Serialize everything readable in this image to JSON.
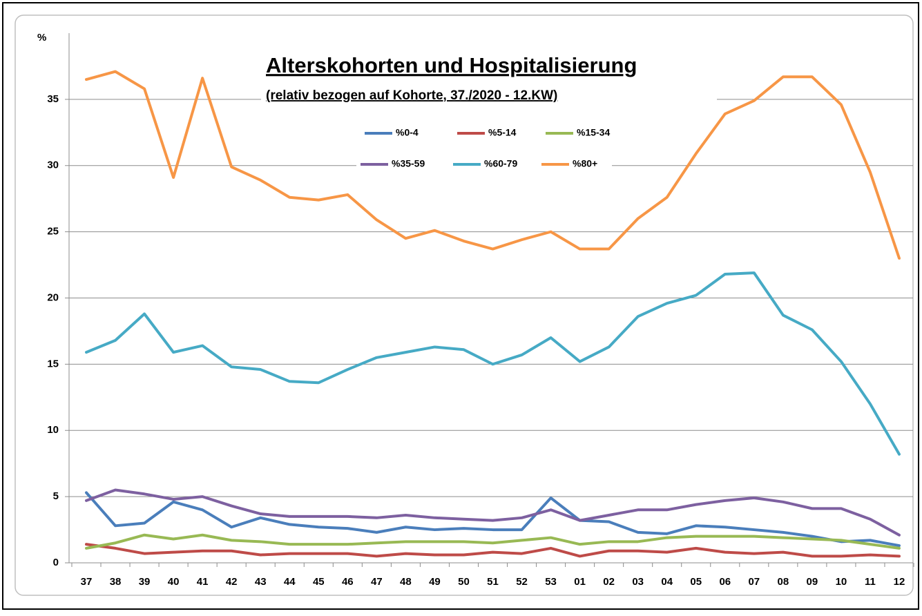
{
  "chart_data": {
    "type": "line",
    "title": "Alterskohorten und Hospitalisierung",
    "subtitle": "(relativ bezogen auf Kohorte, 37./2020  - 12.KW)",
    "y_label": "%",
    "categories": [
      "37",
      "38",
      "39",
      "40",
      "41",
      "42",
      "43",
      "44",
      "45",
      "46",
      "47",
      "48",
      "49",
      "50",
      "51",
      "52",
      "53",
      "01",
      "02",
      "03",
      "04",
      "05",
      "06",
      "07",
      "08",
      "09",
      "10",
      "11",
      "12"
    ],
    "ylim": [
      0,
      40
    ],
    "yticks": [
      0,
      5,
      10,
      15,
      20,
      25,
      30,
      35
    ],
    "grid": true,
    "legend": "top",
    "series": [
      {
        "name": "%0-4",
        "color": "#4a7ebb",
        "values": [
          5.3,
          2.8,
          3.0,
          4.6,
          4.0,
          2.7,
          3.4,
          2.9,
          2.7,
          2.6,
          2.3,
          2.7,
          2.5,
          2.6,
          2.5,
          2.5,
          4.9,
          3.2,
          3.1,
          2.3,
          2.2,
          2.8,
          2.7,
          2.5,
          2.3,
          2.0,
          1.6,
          1.7,
          1.3
        ]
      },
      {
        "name": "%5-14",
        "color": "#be4b48",
        "values": [
          1.4,
          1.1,
          0.7,
          0.8,
          0.9,
          0.9,
          0.6,
          0.7,
          0.7,
          0.7,
          0.5,
          0.7,
          0.6,
          0.6,
          0.8,
          0.7,
          1.1,
          0.5,
          0.9,
          0.9,
          0.8,
          1.1,
          0.8,
          0.7,
          0.8,
          0.5,
          0.5,
          0.6,
          0.5
        ]
      },
      {
        "name": "%15-34",
        "color": "#98b954",
        "values": [
          1.1,
          1.5,
          2.1,
          1.8,
          2.1,
          1.7,
          1.6,
          1.4,
          1.4,
          1.4,
          1.5,
          1.6,
          1.6,
          1.6,
          1.5,
          1.7,
          1.9,
          1.4,
          1.6,
          1.6,
          1.9,
          2.0,
          2.0,
          2.0,
          1.9,
          1.8,
          1.7,
          1.4,
          1.1
        ]
      },
      {
        "name": "%35-59",
        "color": "#7d60a0",
        "values": [
          4.7,
          5.5,
          5.2,
          4.8,
          5.0,
          4.3,
          3.7,
          3.5,
          3.5,
          3.5,
          3.4,
          3.6,
          3.4,
          3.3,
          3.2,
          3.4,
          4.0,
          3.2,
          3.6,
          4.0,
          4.0,
          4.4,
          4.7,
          4.9,
          4.6,
          4.1,
          4.1,
          3.3,
          2.1
        ]
      },
      {
        "name": "%60-79",
        "color": "#46aac5",
        "values": [
          15.9,
          16.8,
          18.8,
          15.9,
          16.4,
          14.8,
          14.6,
          13.7,
          13.6,
          14.6,
          15.5,
          15.9,
          16.3,
          16.1,
          15.0,
          15.7,
          17.0,
          15.2,
          16.3,
          18.6,
          19.6,
          20.2,
          21.8,
          21.9,
          18.7,
          17.6,
          15.2,
          12.0,
          8.2
        ]
      },
      {
        "name": "%80+",
        "color": "#f79646",
        "values": [
          36.5,
          37.1,
          35.8,
          29.1,
          36.6,
          29.9,
          28.9,
          27.6,
          27.4,
          27.8,
          25.9,
          24.5,
          25.1,
          24.3,
          23.7,
          24.4,
          25.0,
          23.7,
          23.7,
          26.0,
          27.6,
          30.9,
          33.9,
          34.9,
          36.7,
          36.7,
          34.6,
          29.5,
          23.0
        ]
      }
    ]
  }
}
